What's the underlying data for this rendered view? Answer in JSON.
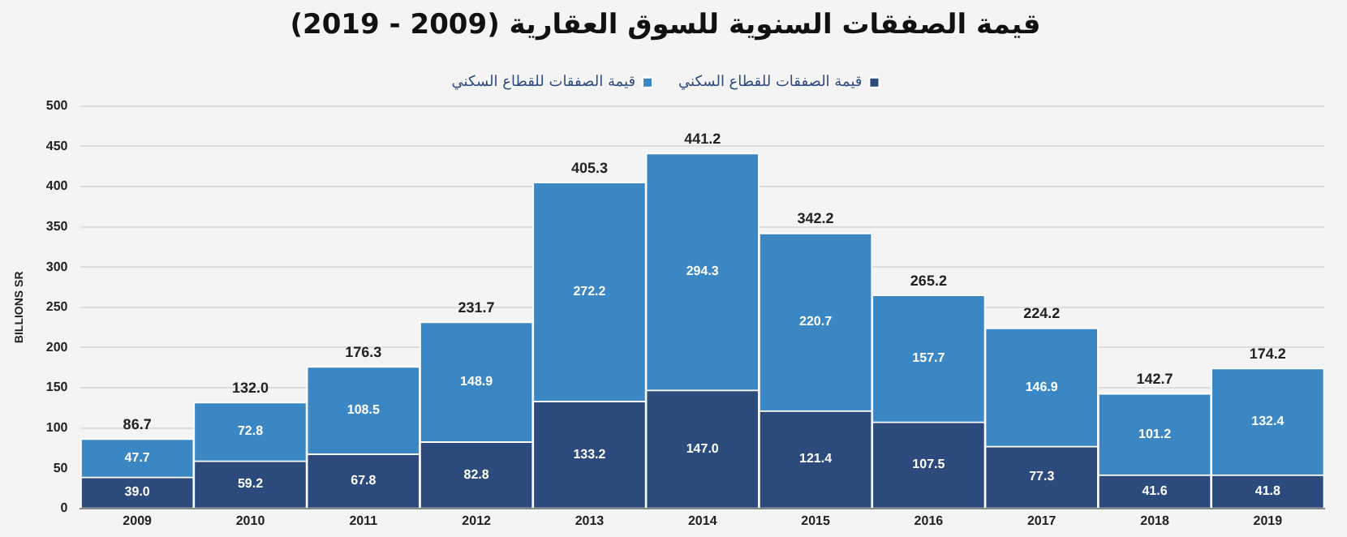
{
  "chart_data": {
    "type": "bar",
    "title": "قيمة الصفقات السنوية للسوق العقارية (2009 - 2019)",
    "ylabel": "BILLIONS SR",
    "stacked": true,
    "legend": "top",
    "grid": "y",
    "categories": [
      "2009",
      "2010",
      "2011",
      "2012",
      "2013",
      "2014",
      "2015",
      "2016",
      "2017",
      "2018",
      "2019"
    ],
    "ylim": [
      0,
      500
    ],
    "yticks": [
      0,
      50,
      100,
      150,
      200,
      250,
      300,
      350,
      400,
      450,
      500
    ],
    "series": [
      {
        "name": "قيمة الصفقات للقطاع السكني",
        "color": "#2c4a7c",
        "values": [
          39.0,
          59.2,
          67.8,
          82.8,
          133.2,
          147.0,
          121.4,
          107.5,
          77.3,
          41.6,
          41.8
        ],
        "value_labels": [
          "39.0",
          "59.2",
          "67.8",
          "82.8",
          "133.2",
          "147.0",
          "121.4",
          "107.5",
          "77.3",
          "41.6",
          "41.8"
        ]
      },
      {
        "name": "قيمة الصفقات للقطاع السكني",
        "color": "#3a87c4",
        "values": [
          47.7,
          72.8,
          108.5,
          148.9,
          272.2,
          294.3,
          220.7,
          157.7,
          146.9,
          101.2,
          132.4
        ],
        "value_labels": [
          "47.7",
          "72.8",
          "108.5",
          "148.9",
          "272.2",
          "294.3",
          "220.7",
          "157.7",
          "146.9",
          "101.2",
          "132.4"
        ]
      }
    ],
    "totals": [
      "86.7",
      "132.0",
      "176.3",
      "231.7",
      "405.3",
      "441.2",
      "342.2",
      "265.2",
      "224.2",
      "142.7",
      "174.2"
    ]
  }
}
